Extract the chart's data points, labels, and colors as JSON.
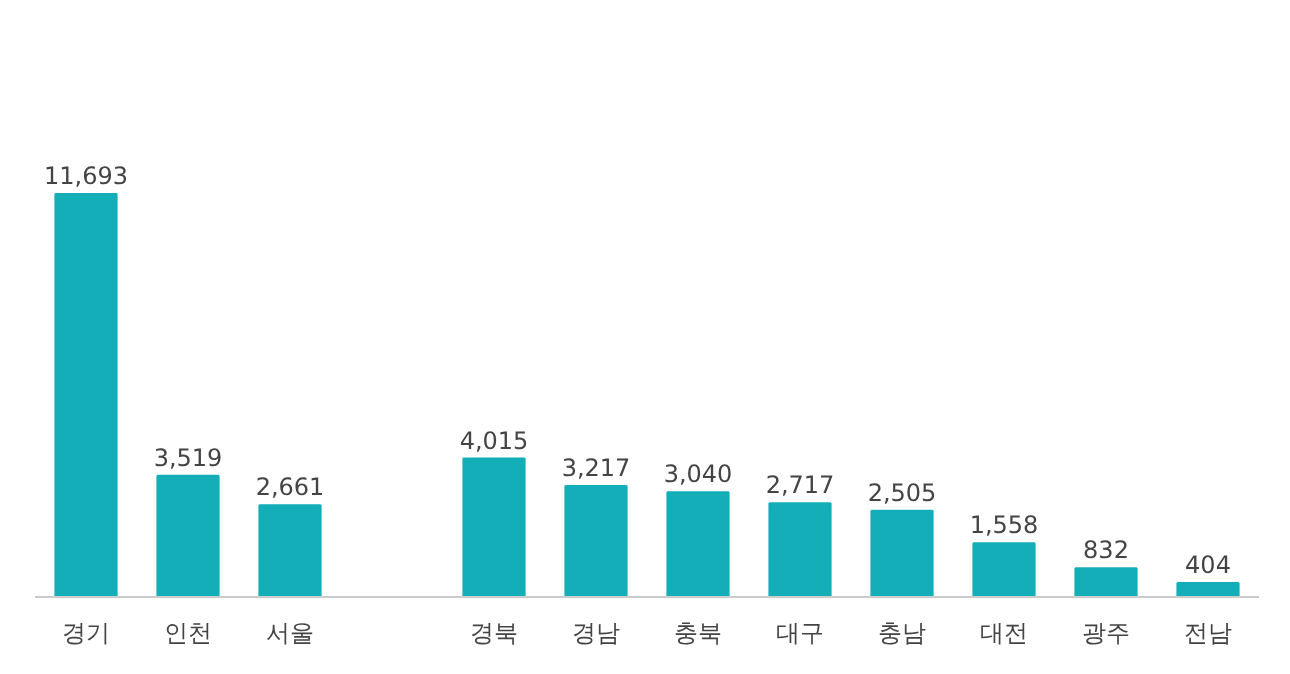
{
  "chart_data": {
    "type": "bar",
    "categories": [
      "경기",
      "인천",
      "서울",
      null,
      "경북",
      "경남",
      "충북",
      "대구",
      "충남",
      "대전",
      "광주",
      "전남"
    ],
    "values": [
      11693,
      3519,
      2661,
      null,
      4015,
      3217,
      3040,
      2717,
      2505,
      1558,
      832,
      404
    ],
    "value_labels": [
      "11,693",
      "3,519",
      "2,661",
      null,
      "4,015",
      "3,217",
      "3,040",
      "2,717",
      "2,505",
      "1,558",
      "832",
      "404"
    ],
    "color": "#13aeb8"
  }
}
